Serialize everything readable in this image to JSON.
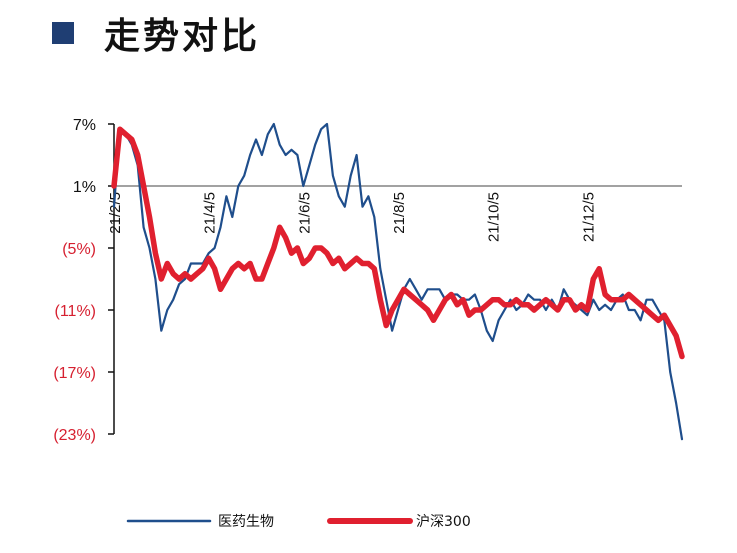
{
  "header": {
    "title": "走势对比"
  },
  "chart_data": {
    "type": "line",
    "title": "",
    "xlabel": "",
    "ylabel": "",
    "ylim": [
      -23,
      7
    ],
    "y_ticks": [
      {
        "value": 7,
        "label": "7%",
        "color": "#111111"
      },
      {
        "value": 1,
        "label": "1%",
        "color": "#111111"
      },
      {
        "value": -5,
        "label": "(5%)",
        "color": "#d62030"
      },
      {
        "value": -11,
        "label": "(11%)",
        "color": "#d62030"
      },
      {
        "value": -17,
        "label": "(17%)",
        "color": "#d62030"
      },
      {
        "value": -23,
        "label": "(23%)",
        "color": "#d62030"
      }
    ],
    "x_ticks": [
      "21/2/5",
      "21/4/5",
      "21/6/5",
      "21/8/5",
      "21/10/5",
      "21/12/5"
    ],
    "x_range": [
      0,
      96
    ],
    "x_tick_positions": [
      0,
      16,
      32,
      48,
      64,
      80
    ],
    "series": [
      {
        "name": "医药生物",
        "color": "#1f4e8c",
        "x": [
          0,
          1,
          2,
          3,
          4,
          5,
          6,
          7,
          8,
          9,
          10,
          11,
          12,
          13,
          14,
          15,
          16,
          17,
          18,
          19,
          20,
          21,
          22,
          23,
          24,
          25,
          26,
          27,
          28,
          29,
          30,
          31,
          32,
          33,
          34,
          35,
          36,
          37,
          38,
          39,
          40,
          41,
          42,
          43,
          44,
          45,
          46,
          47,
          48,
          49,
          50,
          51,
          52,
          53,
          54,
          55,
          56,
          57,
          58,
          59,
          60,
          61,
          62,
          63,
          64,
          65,
          66,
          67,
          68,
          69,
          70,
          71,
          72,
          73,
          74,
          75,
          76,
          77,
          78,
          79,
          80,
          81,
          82,
          83,
          84,
          85,
          86,
          87,
          88,
          89,
          90,
          91,
          92,
          93,
          94,
          95,
          96
        ],
        "values": [
          -1,
          6.5,
          6,
          5,
          3,
          -3,
          -5,
          -8,
          -13,
          -11,
          -10,
          -8.5,
          -8,
          -6.5,
          -6.5,
          -6.5,
          -5.5,
          -5,
          -3,
          0,
          -2,
          1,
          2,
          4,
          5.5,
          4,
          6,
          7,
          5,
          4,
          4.5,
          4,
          1,
          3,
          5,
          6.5,
          7,
          2,
          0,
          -1,
          2,
          4,
          -1,
          0,
          -2,
          -7,
          -10,
          -13,
          -11,
          -9,
          -8,
          -9,
          -10,
          -9,
          -9,
          -9,
          -10,
          -9.5,
          -9.5,
          -10,
          -10,
          -9.5,
          -11,
          -13,
          -14,
          -12,
          -11,
          -10,
          -11,
          -10.5,
          -9.5,
          -10,
          -10,
          -11,
          -10,
          -11,
          -9,
          -10,
          -10.5,
          -11,
          -11.5,
          -10,
          -11,
          -10.5,
          -11,
          -10,
          -9.5,
          -11,
          -11,
          -12,
          -10,
          -10,
          -11,
          -12,
          -17,
          -20,
          -23.5
        ]
      },
      {
        "name": "沪深300",
        "color": "#e0202f",
        "x": [
          0,
          1,
          2,
          3,
          4,
          5,
          6,
          7,
          8,
          9,
          10,
          11,
          12,
          13,
          14,
          15,
          16,
          17,
          18,
          19,
          20,
          21,
          22,
          23,
          24,
          25,
          26,
          27,
          28,
          29,
          30,
          31,
          32,
          33,
          34,
          35,
          36,
          37,
          38,
          39,
          40,
          41,
          42,
          43,
          44,
          45,
          46,
          47,
          48,
          49,
          50,
          51,
          52,
          53,
          54,
          55,
          56,
          57,
          58,
          59,
          60,
          61,
          62,
          63,
          64,
          65,
          66,
          67,
          68,
          69,
          70,
          71,
          72,
          73,
          74,
          75,
          76,
          77,
          78,
          79,
          80,
          81,
          82,
          83,
          84,
          85,
          86,
          87,
          88,
          89,
          90,
          91,
          92,
          93,
          94,
          95,
          96
        ],
        "values": [
          1,
          6.5,
          6,
          5.5,
          4,
          1,
          -2,
          -5.5,
          -8,
          -6.5,
          -7.5,
          -8,
          -7.5,
          -8,
          -7.5,
          -7,
          -6,
          -7,
          -9,
          -8,
          -7,
          -6.5,
          -7,
          -6.5,
          -8,
          -8,
          -6.5,
          -5,
          -3,
          -4,
          -5.5,
          -5,
          -6.5,
          -6,
          -5,
          -5,
          -5.5,
          -6.5,
          -6,
          -7,
          -6.5,
          -6,
          -6.5,
          -6.5,
          -7,
          -10,
          -12.5,
          -11,
          -10,
          -9,
          -9.5,
          -10,
          -10.5,
          -11,
          -12,
          -11,
          -10,
          -9.5,
          -10.5,
          -10,
          -11.5,
          -11,
          -11,
          -10.5,
          -10,
          -10,
          -10.5,
          -10.5,
          -10,
          -10.5,
          -10.5,
          -11,
          -10.5,
          -10,
          -10.5,
          -11,
          -10,
          -10,
          -11,
          -10.5,
          -11,
          -8,
          -7,
          -9.5,
          -10,
          -10,
          -10,
          -9.5,
          -10,
          -10.5,
          -11,
          -11.5,
          -12,
          -11.5,
          -12.5,
          -13.5,
          -15.5
        ]
      }
    ],
    "legend": {
      "placement": "bottom-center"
    }
  }
}
